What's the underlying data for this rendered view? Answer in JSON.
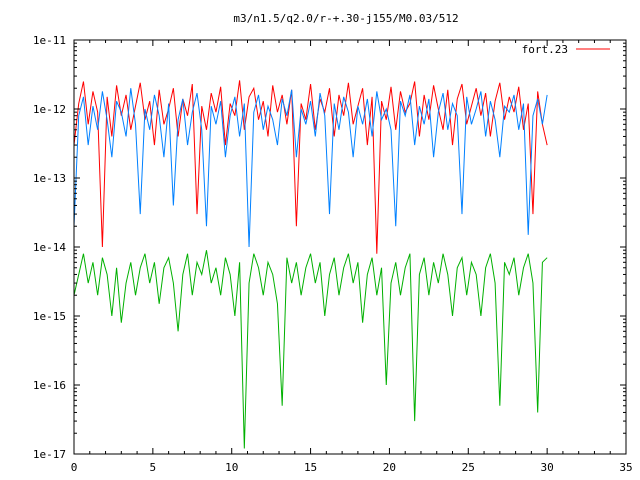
{
  "chart_data": {
    "type": "line",
    "title": "m3/n1.5/q2.0/r-+.30-j155/M0.03/512",
    "xlabel": "",
    "ylabel": "",
    "xlim": [
      0,
      35
    ],
    "ylim": [
      1e-17,
      1e-11
    ],
    "yscale": "log",
    "grid": false,
    "legend_position": "top-right",
    "x_ticks": [
      0,
      5,
      10,
      15,
      20,
      25,
      30,
      35
    ],
    "x_tick_labels": [
      "0",
      "5",
      "10",
      "15",
      "20",
      "25",
      "30",
      "35"
    ],
    "y_ticks": [
      1e-17,
      1e-16,
      1e-15,
      1e-14,
      1e-13,
      1e-12,
      1e-11
    ],
    "y_tick_labels": [
      "1e-17",
      "1e-16",
      "1e-15",
      "1e-14",
      "1e-13",
      "1e-12",
      "1e-11"
    ],
    "series": [
      {
        "name": "fort.23",
        "color": "#ff0000",
        "x": [
          0.0,
          0.3,
          0.6,
          0.9,
          1.2,
          1.5,
          1.8,
          2.1,
          2.4,
          2.7,
          3.0,
          3.3,
          3.6,
          3.9,
          4.2,
          4.5,
          4.8,
          5.1,
          5.4,
          5.7,
          6.0,
          6.3,
          6.6,
          6.9,
          7.2,
          7.5,
          7.8,
          8.1,
          8.4,
          8.7,
          9.0,
          9.3,
          9.6,
          9.9,
          10.2,
          10.5,
          10.8,
          11.1,
          11.4,
          11.7,
          12.0,
          12.3,
          12.6,
          12.9,
          13.2,
          13.5,
          13.8,
          14.1,
          14.4,
          14.7,
          15.0,
          15.3,
          15.6,
          15.9,
          16.2,
          16.5,
          16.8,
          17.1,
          17.4,
          17.7,
          18.0,
          18.3,
          18.6,
          18.9,
          19.2,
          19.5,
          19.8,
          20.1,
          20.4,
          20.7,
          21.0,
          21.3,
          21.6,
          21.9,
          22.2,
          22.5,
          22.8,
          23.1,
          23.4,
          23.7,
          24.0,
          24.3,
          24.6,
          24.9,
          25.2,
          25.5,
          25.8,
          26.1,
          26.4,
          26.7,
          27.0,
          27.3,
          27.6,
          27.9,
          28.2,
          28.5,
          28.8,
          29.1,
          29.4,
          29.7,
          30.0
        ],
        "values": [
          3e-13,
          1.2e-12,
          2.5e-12,
          6e-13,
          1.8e-12,
          9e-13,
          1e-14,
          1.5e-12,
          4e-13,
          2.2e-12,
          8e-13,
          1.6e-12,
          5e-13,
          1.1e-12,
          2.4e-12,
          7e-13,
          1.3e-12,
          3e-13,
          1.9e-12,
          6e-13,
          1e-12,
          2e-12,
          4e-13,
          1.4e-12,
          8e-13,
          2.3e-12,
          3e-14,
          1.1e-12,
          5e-13,
          1.7e-12,
          9e-13,
          2.1e-12,
          3e-13,
          1.2e-12,
          8e-13,
          2.6e-12,
          5e-13,
          1.5e-12,
          2e-12,
          7e-13,
          1.3e-12,
          4e-13,
          2.2e-12,
          9e-13,
          1.6e-12,
          6e-13,
          1.9e-12,
          2e-14,
          1.2e-12,
          7e-13,
          2.3e-12,
          5e-13,
          1.4e-12,
          9e-13,
          2e-12,
          4e-13,
          1.6e-12,
          8e-13,
          2.4e-12,
          6e-13,
          1.1e-12,
          2e-12,
          3e-13,
          1.5e-12,
          8e-15,
          1.3e-12,
          7e-13,
          2.1e-12,
          5e-13,
          1.8e-12,
          9e-13,
          1.2e-12,
          2.5e-12,
          4e-13,
          1.6e-12,
          7e-13,
          2.2e-12,
          1e-12,
          5e-13,
          1.9e-12,
          3e-13,
          1.4e-12,
          2.3e-12,
          6e-13,
          1.1e-12,
          2e-12,
          8e-13,
          1.7e-12,
          4e-13,
          1.3e-12,
          2.4e-12,
          7e-13,
          1.5e-12,
          9e-13,
          2.1e-12,
          5e-13,
          1.2e-12,
          3e-14,
          1.8e-12,
          6e-13,
          3e-13
        ]
      },
      {
        "name": "",
        "color": "#0080ff",
        "x": [
          0.0,
          0.3,
          0.6,
          0.9,
          1.2,
          1.5,
          1.8,
          2.1,
          2.4,
          2.7,
          3.0,
          3.3,
          3.6,
          3.9,
          4.2,
          4.5,
          4.8,
          5.1,
          5.4,
          5.7,
          6.0,
          6.3,
          6.6,
          6.9,
          7.2,
          7.5,
          7.8,
          8.1,
          8.4,
          8.7,
          9.0,
          9.3,
          9.6,
          9.9,
          10.2,
          10.5,
          10.8,
          11.1,
          11.4,
          11.7,
          12.0,
          12.3,
          12.6,
          12.9,
          13.2,
          13.5,
          13.8,
          14.1,
          14.4,
          14.7,
          15.0,
          15.3,
          15.6,
          15.9,
          16.2,
          16.5,
          16.8,
          17.1,
          17.4,
          17.7,
          18.0,
          18.3,
          18.6,
          18.9,
          19.2,
          19.5,
          19.8,
          20.1,
          20.4,
          20.7,
          21.0,
          21.3,
          21.6,
          21.9,
          22.2,
          22.5,
          22.8,
          23.1,
          23.4,
          23.7,
          24.0,
          24.3,
          24.6,
          24.9,
          25.2,
          25.5,
          25.8,
          26.1,
          26.4,
          26.7,
          27.0,
          27.3,
          27.6,
          27.9,
          28.2,
          28.5,
          28.8,
          29.1,
          29.4,
          29.7,
          30.0
        ],
        "values": [
          2e-14,
          8e-13,
          1.5e-12,
          3e-13,
          1.1e-12,
          5e-13,
          1.8e-12,
          7e-13,
          2e-13,
          1.3e-12,
          9e-13,
          4e-13,
          2e-12,
          6e-13,
          3e-14,
          1e-12,
          5e-13,
          1.6e-12,
          8e-13,
          2e-13,
          1.2e-12,
          4e-14,
          7e-13,
          1.4e-12,
          3e-13,
          9e-13,
          1.7e-12,
          5e-13,
          2e-14,
          1.1e-12,
          6e-13,
          1.3e-12,
          2e-13,
          8e-13,
          1.5e-12,
          4e-13,
          1.2e-12,
          1e-14,
          9e-13,
          1.6e-12,
          5e-13,
          1.1e-12,
          7e-13,
          3e-13,
          1.4e-12,
          8e-13,
          1.9e-12,
          2e-13,
          1e-12,
          6e-13,
          1.3e-12,
          4e-13,
          1.7e-12,
          8e-13,
          3e-14,
          1.2e-12,
          5e-13,
          1.5e-12,
          9e-13,
          2e-13,
          1.1e-12,
          6e-13,
          1.4e-12,
          4e-13,
          1.8e-12,
          7e-13,
          1e-12,
          5e-13,
          2e-14,
          1.3e-12,
          8e-13,
          1.6e-12,
          3e-13,
          1.1e-12,
          6e-13,
          1.4e-12,
          2e-13,
          9e-13,
          1.7e-12,
          5e-13,
          1.2e-12,
          8e-13,
          3e-14,
          1.5e-12,
          6e-13,
          1e-12,
          1.8e-12,
          4e-13,
          1.3e-12,
          7e-13,
          2e-13,
          1.1e-12,
          9e-13,
          1.6e-12,
          5e-13,
          1.2e-12,
          1.5e-14,
          8e-13,
          1.4e-12,
          6e-13,
          1.6e-12
        ]
      },
      {
        "name": "",
        "color": "#00b000",
        "x": [
          0.0,
          0.3,
          0.6,
          0.9,
          1.2,
          1.5,
          1.8,
          2.1,
          2.4,
          2.7,
          3.0,
          3.3,
          3.6,
          3.9,
          4.2,
          4.5,
          4.8,
          5.1,
          5.4,
          5.7,
          6.0,
          6.3,
          6.6,
          6.9,
          7.2,
          7.5,
          7.8,
          8.1,
          8.4,
          8.7,
          9.0,
          9.3,
          9.6,
          9.9,
          10.2,
          10.5,
          10.8,
          11.1,
          11.4,
          11.7,
          12.0,
          12.3,
          12.6,
          12.9,
          13.2,
          13.5,
          13.8,
          14.1,
          14.4,
          14.7,
          15.0,
          15.3,
          15.6,
          15.9,
          16.2,
          16.5,
          16.8,
          17.1,
          17.4,
          17.7,
          18.0,
          18.3,
          18.6,
          18.9,
          19.2,
          19.5,
          19.8,
          20.1,
          20.4,
          20.7,
          21.0,
          21.3,
          21.6,
          21.9,
          22.2,
          22.5,
          22.8,
          23.1,
          23.4,
          23.7,
          24.0,
          24.3,
          24.6,
          24.9,
          25.2,
          25.5,
          25.8,
          26.1,
          26.4,
          26.7,
          27.0,
          27.3,
          27.6,
          27.9,
          28.2,
          28.5,
          28.8,
          29.1,
          29.4,
          29.7,
          30.0
        ],
        "values": [
          2e-15,
          4e-15,
          8e-15,
          3e-15,
          6e-15,
          2e-15,
          7e-15,
          4e-15,
          1e-15,
          5e-15,
          8e-16,
          3e-15,
          6e-15,
          2e-15,
          5e-15,
          8e-15,
          3e-15,
          6e-15,
          1.5e-15,
          5e-15,
          7e-15,
          3e-15,
          6e-16,
          4e-15,
          8e-15,
          2e-15,
          6e-15,
          4e-15,
          9e-15,
          3e-15,
          5e-15,
          2e-15,
          7e-15,
          4e-15,
          1e-15,
          6e-15,
          1.2e-17,
          3e-15,
          8e-15,
          5e-15,
          2e-15,
          6e-15,
          4e-15,
          1.5e-15,
          5e-17,
          7e-15,
          3e-15,
          6e-15,
          2e-15,
          5e-15,
          8e-15,
          3e-15,
          6e-15,
          1e-15,
          4e-15,
          7e-15,
          2e-15,
          5e-15,
          8e-15,
          3e-15,
          6e-15,
          8e-16,
          4e-15,
          7e-15,
          2e-15,
          5e-15,
          1e-16,
          3e-15,
          6e-15,
          2e-15,
          5e-15,
          8e-15,
          3e-17,
          4e-15,
          7e-15,
          2e-15,
          6e-15,
          3e-15,
          8e-15,
          4e-15,
          1e-15,
          5e-15,
          7e-15,
          2e-15,
          6e-15,
          4e-15,
          1e-15,
          5e-15,
          8e-15,
          3e-15,
          5e-17,
          6e-15,
          4e-15,
          7e-15,
          2e-15,
          5e-15,
          8e-15,
          3e-15,
          4e-17,
          6e-15,
          7e-15
        ]
      }
    ]
  }
}
